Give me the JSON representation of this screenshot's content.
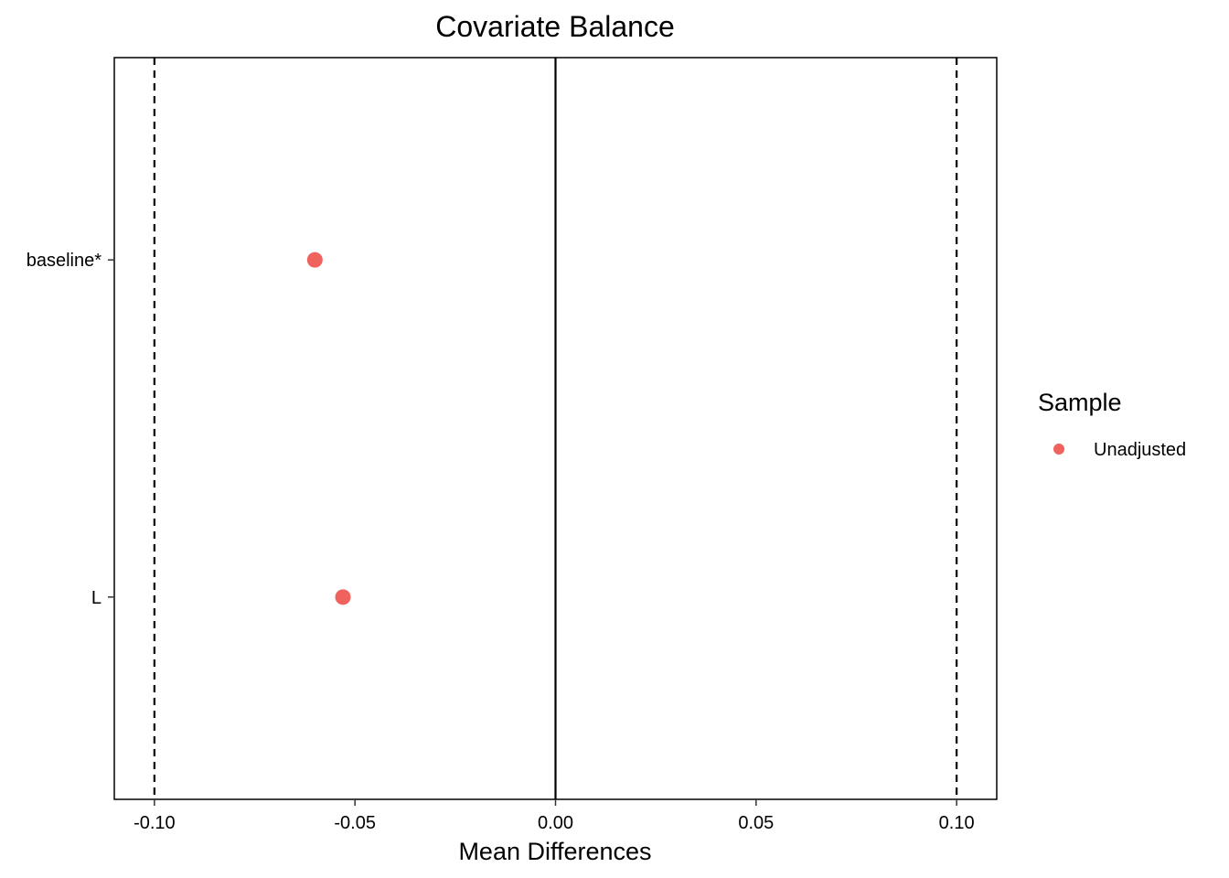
{
  "chart_data": {
    "type": "scatter",
    "title": "Covariate Balance",
    "xlabel": "Mean Differences",
    "ylabel": "",
    "xlim": [
      -0.11,
      0.11
    ],
    "x_ticks": [
      -0.1,
      -0.05,
      0.0,
      0.05,
      0.1
    ],
    "x_tick_labels": [
      "-0.10",
      "-0.05",
      "0.00",
      "0.05",
      "0.10"
    ],
    "categories": [
      "baseline*",
      "L"
    ],
    "series": [
      {
        "name": "Unadjusted",
        "color": "#F0625E",
        "points": [
          {
            "category": "baseline*",
            "x": -0.06
          },
          {
            "category": "L",
            "x": -0.053
          }
        ]
      }
    ],
    "reference_lines": {
      "zero": 0.0,
      "thresholds": [
        -0.1,
        0.1
      ]
    },
    "legend": {
      "title": "Sample",
      "position": "right"
    },
    "grid": false
  }
}
